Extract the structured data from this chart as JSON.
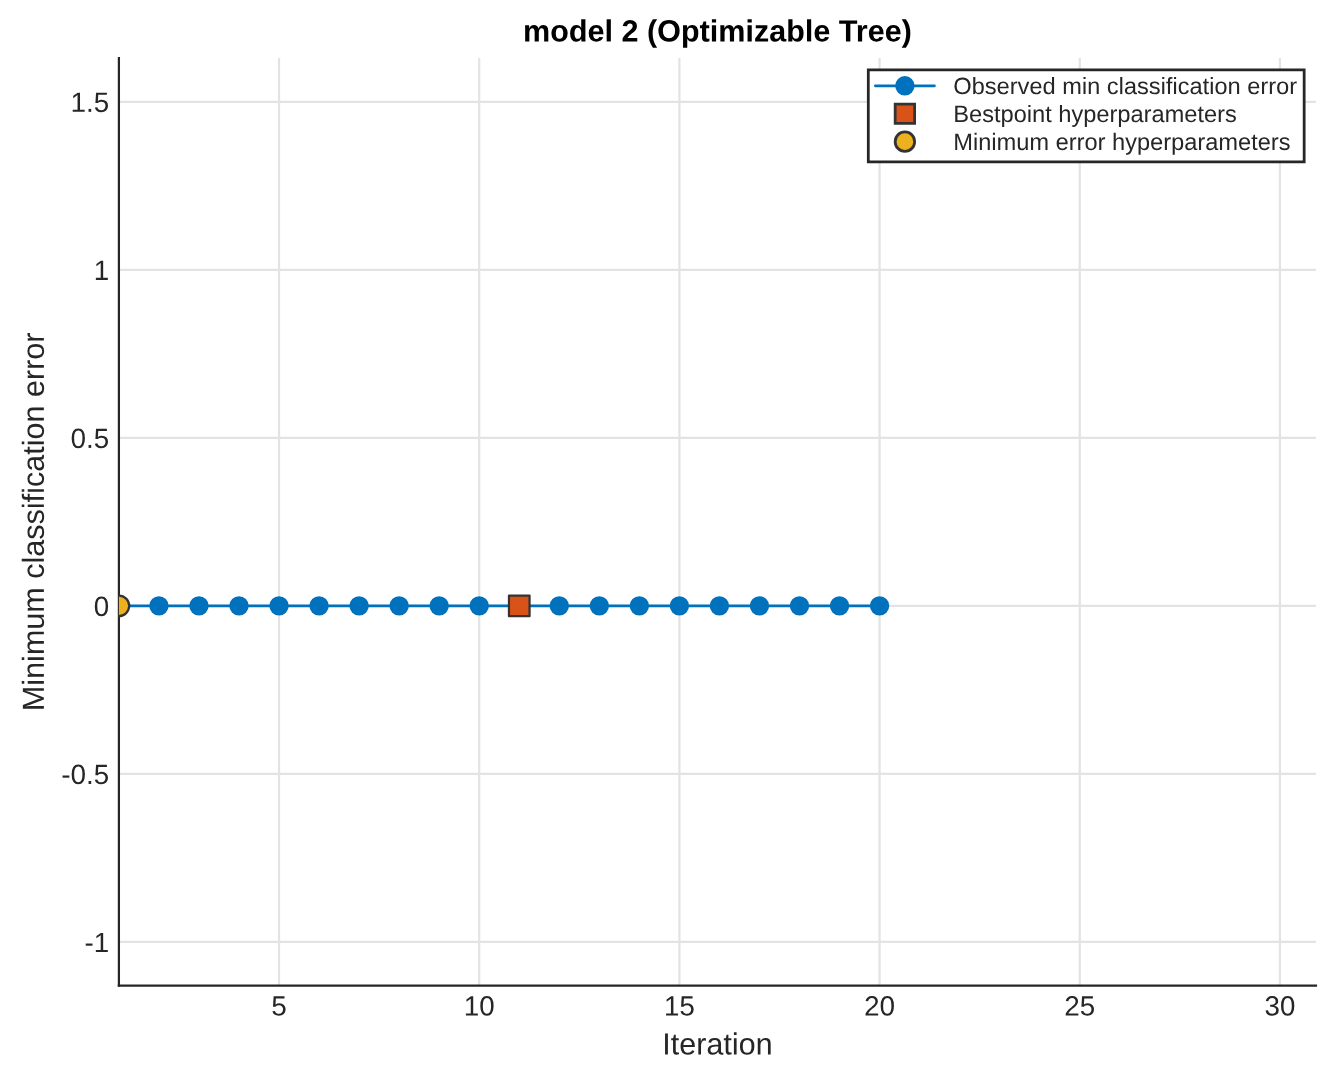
{
  "chart_data": {
    "type": "line",
    "title": "model 2 (Optimizable Tree)",
    "xlabel": "Iteration",
    "ylabel": "Minimum classification error",
    "series": [
      {
        "name": "Observed min classification error",
        "marker": "circle",
        "color": "#0072bd",
        "x": [
          1,
          2,
          3,
          4,
          5,
          6,
          7,
          8,
          9,
          10,
          11,
          12,
          13,
          14,
          15,
          16,
          17,
          18,
          19,
          20
        ],
        "values": [
          0,
          0,
          0,
          0,
          0,
          0,
          0,
          0,
          0,
          0,
          0,
          0,
          0,
          0,
          0,
          0,
          0,
          0,
          0,
          0
        ]
      },
      {
        "name": "Bestpoint hyperparameters",
        "type": "scatter",
        "marker": "square",
        "color": "#d95319",
        "x": [
          11
        ],
        "values": [
          0
        ]
      },
      {
        "name": "Minimum error hyperparameters",
        "type": "scatter",
        "marker": "circle",
        "color": "#edb120",
        "x": [
          1
        ],
        "values": [
          0
        ]
      }
    ],
    "xlim": [
      1,
      30.9
    ],
    "xticks": [
      5,
      10,
      15,
      20,
      25,
      30
    ],
    "ylim": [
      -1.13,
      1.63
    ],
    "yticks": [
      -1,
      -0.5,
      0,
      0.5,
      1,
      1.5
    ],
    "grid": true,
    "legend": "top right"
  }
}
